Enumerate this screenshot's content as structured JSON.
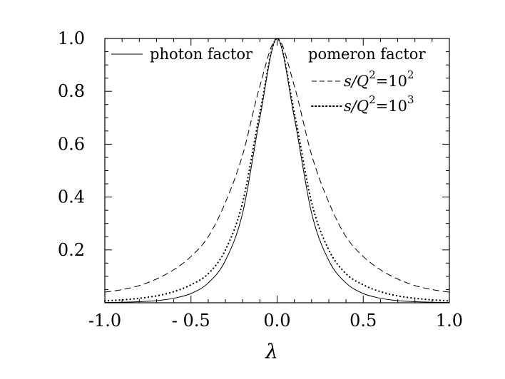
{
  "chart_data": {
    "type": "line",
    "xlabel": "λ",
    "ylabel": "",
    "xlim": [
      -1.0,
      1.0
    ],
    "ylim": [
      0.0,
      1.0
    ],
    "x_ticks": [
      "-1.0",
      "- 0.5",
      "0.0",
      "0.5",
      "1.0"
    ],
    "y_ticks": [
      "0.2",
      "0.4",
      "0.6",
      "0.8",
      "1.0"
    ],
    "grid": false,
    "legend": {
      "placement": "top",
      "left_entry": "photon factor",
      "right_heading": "pomeron factor",
      "right_entries": [
        {
          "base": "s/Q",
          "sup1": "2",
          "mid": "=10",
          "sup2": "2",
          "style": "dashed"
        },
        {
          "base": "s/Q",
          "sup1": "2",
          "mid": "=10",
          "sup2": "3",
          "style": "dotted"
        }
      ]
    },
    "series": [
      {
        "name": "photon factor",
        "style": "solid",
        "x": [
          -1.0,
          -0.9,
          -0.8,
          -0.7,
          -0.6,
          -0.5,
          -0.4,
          -0.3,
          -0.2,
          -0.1,
          0.0,
          0.1,
          0.2,
          0.3,
          0.4,
          0.5,
          0.6,
          0.7,
          0.8,
          0.9,
          1.0
        ],
        "y": [
          0.001,
          0.002,
          0.004,
          0.008,
          0.017,
          0.035,
          0.075,
          0.16,
          0.34,
          0.7,
          1.0,
          0.7,
          0.34,
          0.16,
          0.075,
          0.035,
          0.017,
          0.008,
          0.004,
          0.002,
          0.001
        ]
      },
      {
        "name": "s/Q²=10²",
        "style": "dashed",
        "x": [
          -1.0,
          -0.9,
          -0.8,
          -0.7,
          -0.6,
          -0.5,
          -0.4,
          -0.3,
          -0.2,
          -0.1,
          0.0,
          0.1,
          0.2,
          0.3,
          0.4,
          0.5,
          0.6,
          0.7,
          0.8,
          0.9,
          1.0
        ],
        "y": [
          0.04,
          0.05,
          0.065,
          0.09,
          0.125,
          0.175,
          0.25,
          0.38,
          0.56,
          0.82,
          1.0,
          0.82,
          0.56,
          0.38,
          0.25,
          0.175,
          0.125,
          0.09,
          0.065,
          0.05,
          0.04
        ]
      },
      {
        "name": "s/Q²=10³",
        "style": "dotted",
        "x": [
          -1.0,
          -0.9,
          -0.8,
          -0.7,
          -0.6,
          -0.5,
          -0.4,
          -0.3,
          -0.2,
          -0.1,
          0.0,
          0.1,
          0.2,
          0.3,
          0.4,
          0.5,
          0.6,
          0.7,
          0.8,
          0.9,
          1.0
        ],
        "y": [
          0.007,
          0.011,
          0.017,
          0.026,
          0.042,
          0.068,
          0.11,
          0.2,
          0.38,
          0.72,
          1.0,
          0.72,
          0.38,
          0.2,
          0.11,
          0.068,
          0.042,
          0.026,
          0.017,
          0.011,
          0.007
        ]
      }
    ]
  }
}
